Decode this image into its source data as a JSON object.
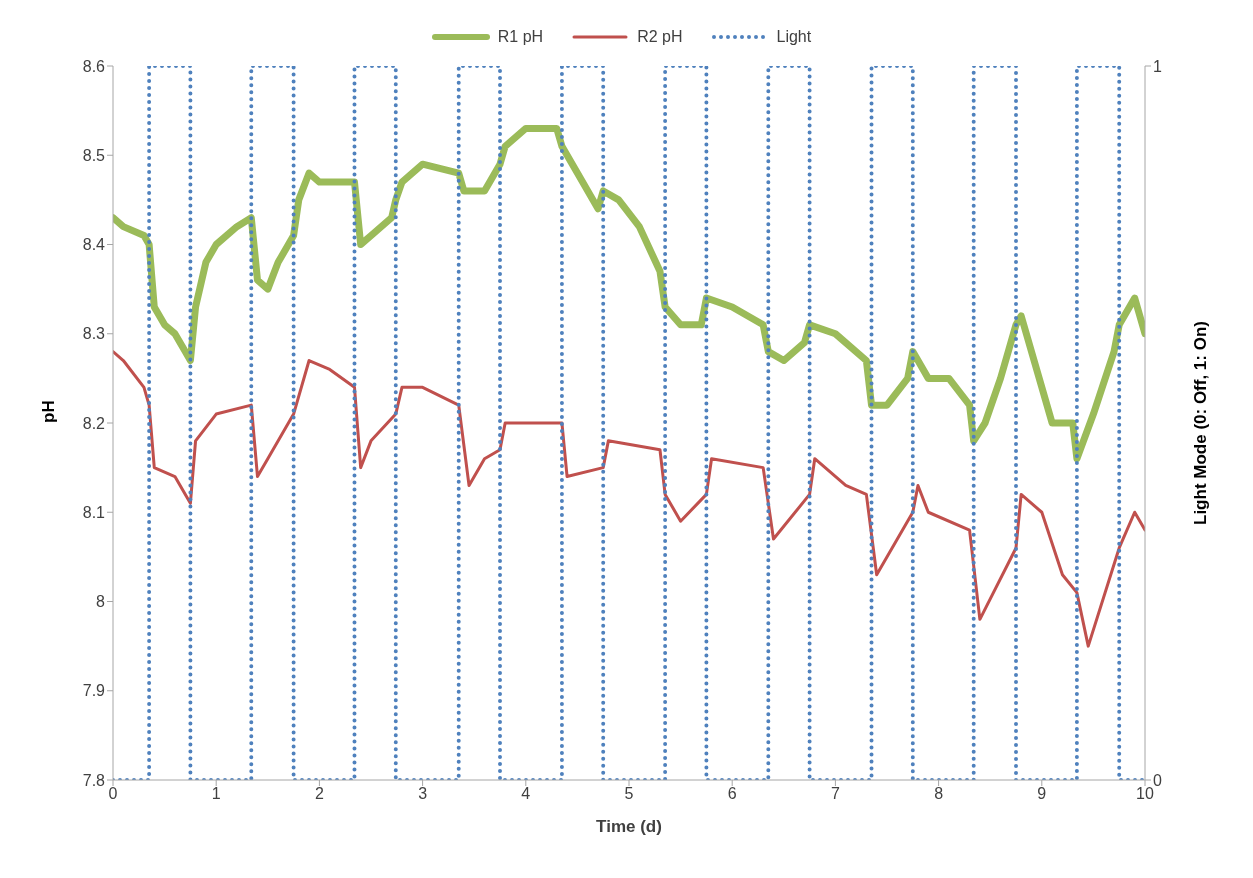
{
  "chart_data": {
    "type": "line",
    "xlabel": "Time (d)",
    "ylabel": "pH",
    "y2label": "Light Mode (0: Off, 1: On)",
    "xlim": [
      0,
      10
    ],
    "xticks": [
      0,
      1,
      2,
      3,
      4,
      5,
      6,
      7,
      8,
      9,
      10
    ],
    "ylim": [
      7.8,
      8.6
    ],
    "yticks": [
      7.8,
      7.9,
      8,
      8.1,
      8.2,
      8.3,
      8.4,
      8.5,
      8.6
    ],
    "y2lim": [
      0,
      1
    ],
    "y2ticks": [
      0,
      1
    ],
    "legend": "top",
    "grid": false,
    "marker": "none",
    "series": [
      {
        "name": "R1 pH",
        "color": "#9bbb59",
        "line_style": "solid",
        "x": [
          0,
          0.1,
          0.3,
          0.35,
          0.4,
          0.5,
          0.6,
          0.7,
          0.75,
          0.8,
          0.9,
          1.0,
          1.2,
          1.34,
          1.4,
          1.5,
          1.6,
          1.75,
          1.8,
          1.9,
          2.0,
          2.34,
          2.4,
          2.5,
          2.7,
          2.74,
          2.8,
          3.0,
          3.35,
          3.4,
          3.6,
          3.75,
          3.8,
          4.0,
          4.3,
          4.35,
          4.5,
          4.7,
          4.75,
          4.9,
          5.1,
          5.3,
          5.35,
          5.5,
          5.7,
          5.75,
          6.0,
          6.3,
          6.35,
          6.5,
          6.7,
          6.75,
          7.0,
          7.3,
          7.35,
          7.5,
          7.7,
          7.75,
          7.9,
          8.1,
          8.3,
          8.34,
          8.45,
          8.6,
          8.75,
          8.8,
          9.0,
          9.1,
          9.3,
          9.34,
          9.5,
          9.7,
          9.75,
          9.9,
          10
        ],
        "values": [
          8.43,
          8.42,
          8.41,
          8.4,
          8.33,
          8.31,
          8.3,
          8.28,
          8.27,
          8.33,
          8.38,
          8.4,
          8.42,
          8.43,
          8.36,
          8.35,
          8.38,
          8.41,
          8.45,
          8.48,
          8.47,
          8.47,
          8.4,
          8.41,
          8.43,
          8.45,
          8.47,
          8.49,
          8.48,
          8.46,
          8.46,
          8.49,
          8.51,
          8.53,
          8.53,
          8.51,
          8.48,
          8.44,
          8.46,
          8.45,
          8.42,
          8.37,
          8.33,
          8.31,
          8.31,
          8.34,
          8.33,
          8.31,
          8.28,
          8.27,
          8.29,
          8.31,
          8.3,
          8.27,
          8.22,
          8.22,
          8.25,
          8.28,
          8.25,
          8.25,
          8.22,
          8.18,
          8.2,
          8.25,
          8.31,
          8.32,
          8.24,
          8.2,
          8.2,
          8.16,
          8.21,
          8.28,
          8.31,
          8.34,
          8.3
        ]
      },
      {
        "name": "R2 pH",
        "color": "#c0504d",
        "line_style": "solid",
        "x": [
          0,
          0.1,
          0.3,
          0.35,
          0.4,
          0.6,
          0.75,
          0.8,
          1.0,
          1.34,
          1.4,
          1.5,
          1.75,
          1.9,
          2.1,
          2.34,
          2.4,
          2.5,
          2.74,
          2.8,
          3.0,
          3.35,
          3.45,
          3.6,
          3.75,
          3.8,
          4.35,
          4.4,
          4.75,
          4.8,
          5.3,
          5.35,
          5.5,
          5.75,
          5.8,
          6.3,
          6.4,
          6.75,
          6.8,
          7.1,
          7.3,
          7.4,
          7.75,
          7.8,
          7.9,
          8.3,
          8.4,
          8.75,
          8.8,
          9.0,
          9.2,
          9.34,
          9.45,
          9.75,
          9.9,
          10
        ],
        "values": [
          8.28,
          8.27,
          8.24,
          8.22,
          8.15,
          8.14,
          8.11,
          8.18,
          8.21,
          8.22,
          8.14,
          8.16,
          8.21,
          8.27,
          8.26,
          8.24,
          8.15,
          8.18,
          8.21,
          8.24,
          8.24,
          8.22,
          8.13,
          8.16,
          8.17,
          8.2,
          8.2,
          8.14,
          8.15,
          8.18,
          8.17,
          8.12,
          8.09,
          8.12,
          8.16,
          8.15,
          8.07,
          8.12,
          8.16,
          8.13,
          8.12,
          8.03,
          8.1,
          8.13,
          8.1,
          8.08,
          7.98,
          8.06,
          8.12,
          8.1,
          8.03,
          8.01,
          7.95,
          8.06,
          8.1,
          8.08
        ]
      },
      {
        "name": "Light",
        "color": "#4f81bd",
        "line_style": "dotted",
        "axis": "y2",
        "x": [
          0,
          0.35,
          0.35,
          0.75,
          0.75,
          1.34,
          1.34,
          1.75,
          1.75,
          2.34,
          2.34,
          2.74,
          2.74,
          3.35,
          3.35,
          3.75,
          3.75,
          4.35,
          4.35,
          4.75,
          4.75,
          5.35,
          5.35,
          5.75,
          5.75,
          6.35,
          6.35,
          6.75,
          6.75,
          7.35,
          7.35,
          7.75,
          7.75,
          8.34,
          8.34,
          8.75,
          8.75,
          9.34,
          9.34,
          9.75,
          9.75,
          10
        ],
        "values": [
          0,
          0,
          1,
          1,
          0,
          0,
          1,
          1,
          0,
          0,
          1,
          1,
          0,
          0,
          1,
          1,
          0,
          0,
          1,
          1,
          0,
          0,
          1,
          1,
          0,
          0,
          1,
          1,
          0,
          0,
          1,
          1,
          0,
          0,
          1,
          1,
          0,
          0,
          1,
          1,
          0,
          0
        ]
      }
    ]
  }
}
